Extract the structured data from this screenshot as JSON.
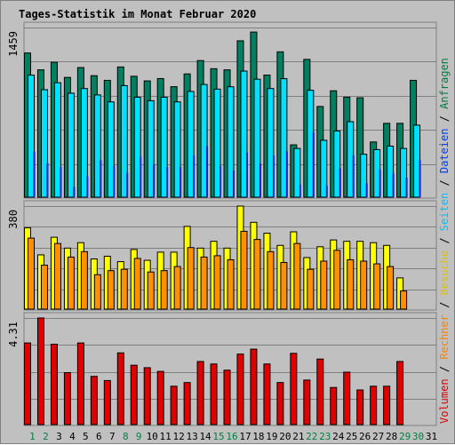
{
  "chart_data": {
    "type": "bar",
    "title": "Tages-Statistik im Monat Februar 2020",
    "days": [
      "1",
      "2",
      "3",
      "4",
      "5",
      "6",
      "7",
      "8",
      "9",
      "10",
      "11",
      "12",
      "13",
      "14",
      "15",
      "16",
      "17",
      "18",
      "19",
      "20",
      "21",
      "22",
      "23",
      "24",
      "25",
      "26",
      "27",
      "28",
      "29",
      "30",
      "31"
    ],
    "weekend_days": [
      "1",
      "2",
      "8",
      "9",
      "15",
      "16",
      "22",
      "23",
      "29",
      "30"
    ],
    "panels": [
      {
        "id": "top",
        "ymax_label": "1459",
        "ymax": 1459,
        "series": [
          {
            "name": "Anfragen",
            "color": "#008060",
            "values": [
              1240,
              1095,
              1160,
              1030,
              1115,
              1045,
              1005,
              1120,
              1040,
              1000,
              1020,
              950,
              1060,
              1175,
              1105,
              1095,
              1345,
              1420,
              1050,
              1250,
              450,
              1185,
              780,
              915,
              860,
              855,
              475,
              635,
              635,
              1005,
              null
            ]
          },
          {
            "name": "Dateien",
            "color": "#00e0ff",
            "values": [
              1080,
              955,
              1015,
              925,
              965,
              910,
              850,
              990,
              890,
              860,
              890,
              850,
              940,
              1000,
              960,
              980,
              1115,
              1045,
              965,
              1050,
              450,
              950,
              520,
              600,
              680,
              400,
              440,
              470,
              450,
              650,
              null
            ]
          },
          {
            "name": "Seiten",
            "color": "#1020c0",
            "values": [
              450,
              355,
              320,
              150,
              240,
              380,
              330,
              270,
              410,
              340,
              320,
              320,
              420,
              500,
              330,
              290,
              445,
              350,
              420,
              455,
              170,
              620,
              160,
              310,
              420,
              180,
              300,
              265,
              230,
              380,
              null
            ]
          }
        ]
      },
      {
        "id": "middle",
        "ymax_label": "380",
        "ymax": 380,
        "series": [
          {
            "name": "Besuche",
            "color": "#ffff00",
            "values": [
              300,
              200,
              265,
              225,
              245,
              185,
              195,
              175,
              220,
              180,
              210,
              210,
              305,
              225,
              250,
              225,
              380,
              320,
              280,
              235,
              285,
              190,
              230,
              255,
              250,
              250,
              245,
              235,
              115,
              null,
              null
            ]
          },
          {
            "name": "Rechner",
            "color": "#ff9000",
            "values": [
              275,
              175,
              255,
              205,
              225,
              140,
              155,
              160,
              200,
              150,
              155,
              170,
              240,
              205,
              210,
              195,
              300,
              270,
              225,
              185,
              255,
              160,
              190,
              230,
              195,
              190,
              180,
              170,
              80,
              null,
              null
            ]
          }
        ]
      },
      {
        "id": "bottom",
        "ymax_label": "4.31",
        "ymax": 4.31,
        "series": [
          {
            "name": "Volumen",
            "color": "#e00000",
            "values": [
              3.3,
              4.35,
              3.25,
              2.1,
              3.3,
              1.95,
              1.78,
              2.9,
              2.4,
              2.3,
              2.15,
              1.55,
              1.7,
              2.55,
              2.45,
              2.2,
              2.85,
              3.05,
              2.45,
              1.7,
              2.88,
              1.8,
              2.65,
              1.5,
              2.12,
              1.4,
              1.55,
              1.55,
              2.55,
              null,
              null
            ]
          }
        ]
      }
    ],
    "legend": [
      {
        "label": "Volumen",
        "color": "#e00000"
      },
      {
        "label": "Rechner",
        "color": "#ff8000"
      },
      {
        "label": "Besuche",
        "color": "#e0c000"
      },
      {
        "label": "Seiten",
        "color": "#00c0ff"
      },
      {
        "label": "Dateien",
        "color": "#0040ff"
      },
      {
        "label": "Anfragen",
        "color": "#008040"
      }
    ],
    "legend_separator": " / ",
    "colors": {
      "background": "#c0c0c0",
      "grid": "#808080",
      "title": "#0000ff",
      "tick": "#000000",
      "day_weekday": "#000000",
      "day_weekend": "#008040"
    }
  }
}
